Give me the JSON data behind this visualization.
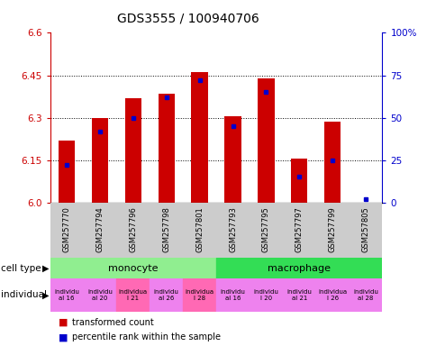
{
  "title": "GDS3555 / 100940706",
  "samples": [
    "GSM257770",
    "GSM257794",
    "GSM257796",
    "GSM257798",
    "GSM257801",
    "GSM257793",
    "GSM257795",
    "GSM257797",
    "GSM257799",
    "GSM257805"
  ],
  "red_values": [
    6.22,
    6.3,
    6.37,
    6.385,
    6.46,
    6.305,
    6.44,
    6.155,
    6.285,
    6.0
  ],
  "blue_percentiles": [
    22,
    42,
    50,
    62,
    72,
    45,
    65,
    15,
    25,
    2
  ],
  "ymin": 6.0,
  "ymax": 6.6,
  "yticks_left": [
    6.0,
    6.15,
    6.3,
    6.45,
    6.6
  ],
  "yticks_right": [
    0,
    25,
    50,
    75,
    100
  ],
  "grid_lines": [
    6.15,
    6.3,
    6.45
  ],
  "cell_types": [
    {
      "label": "monocyte",
      "start": 0,
      "end": 5,
      "color": "#90EE90"
    },
    {
      "label": "macrophage",
      "start": 5,
      "end": 10,
      "color": "#33DD55"
    }
  ],
  "ind_labels": [
    "individu\nal 16",
    "individu\nal 20",
    "individua\nl 21",
    "individu\nal 26",
    "individua\nl 28",
    "individu\nal 16",
    "individu\nl 20",
    "individu\nal 21",
    "individua\nl 26",
    "individu\nal 28"
  ],
  "ind_colors": [
    "#EE82EE",
    "#EE82EE",
    "#FF69B4",
    "#EE82EE",
    "#FF69B4",
    "#EE82EE",
    "#EE82EE",
    "#EE82EE",
    "#EE82EE",
    "#EE82EE"
  ],
  "bar_color": "#CC0000",
  "dot_color": "#0000CC",
  "bar_width": 0.5,
  "left_axis_color": "#CC0000",
  "right_axis_color": "#0000CC",
  "label_row_color": "#CCCCCC",
  "fig_width": 4.85,
  "fig_height": 3.84,
  "dpi": 100
}
